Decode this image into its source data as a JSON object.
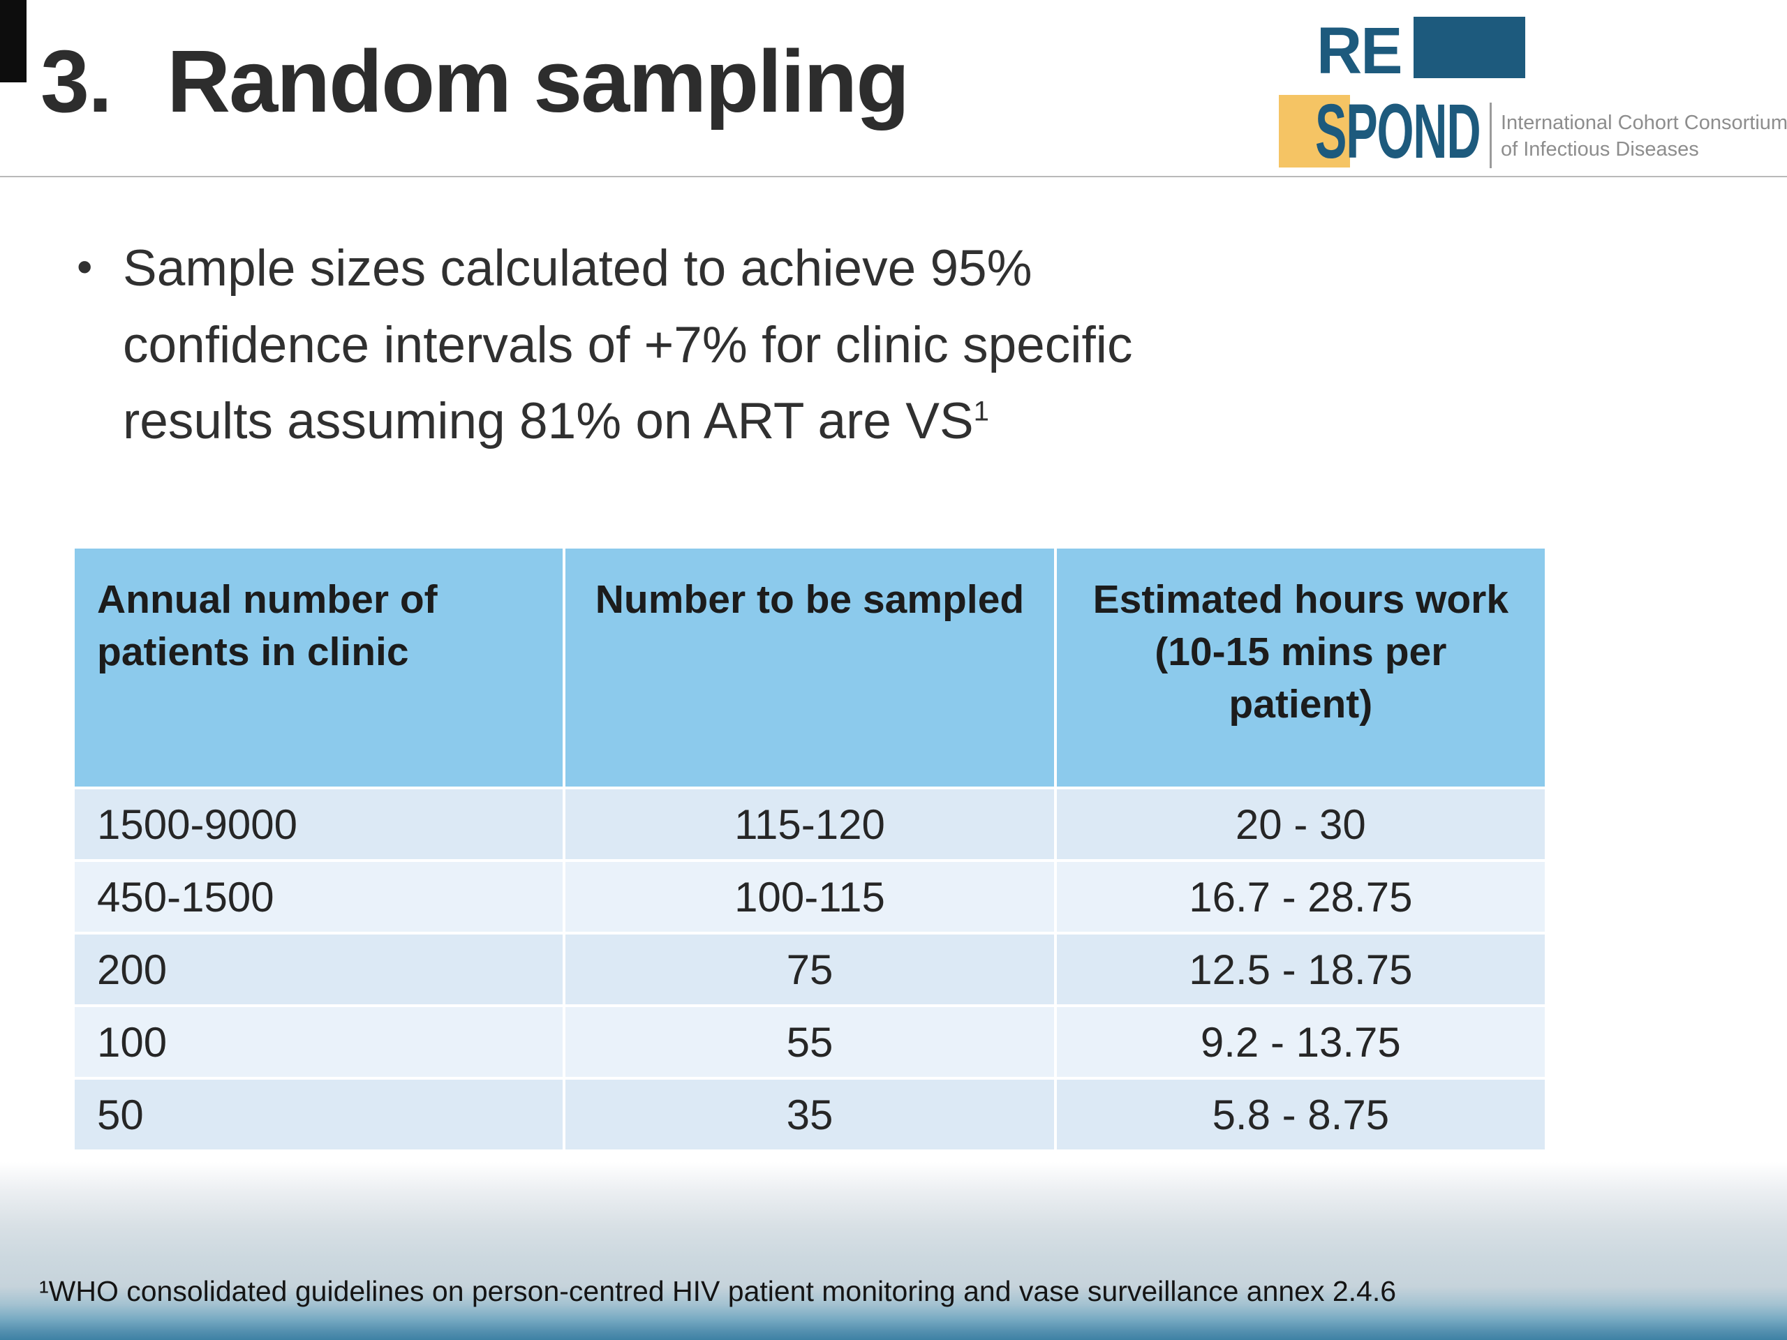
{
  "slide": {
    "title_number": "3.",
    "title_text": "Random sampling",
    "bullet_marker": "•",
    "bullet_lines": [
      "Sample sizes calculated to achieve 95%",
      "confidence intervals of +7% for clinic specific",
      "results assuming 81% on ART are VS"
    ],
    "bullet_sup": "1",
    "footnote": "¹WHO consolidated guidelines on person-centred HIV patient monitoring and vase surveillance annex 2.4.6"
  },
  "logo": {
    "re": "RE",
    "spond": "SPOND",
    "tagline": [
      "International Cohort Consortium",
      "of Infectious Diseases"
    ],
    "colors": {
      "navy": "#1d5a7d",
      "yellow": "#f5c464",
      "tagline_gray": "#8d8d8d"
    }
  },
  "table": {
    "headers": [
      "Annual number of patients in clinic",
      "Number to be sampled",
      "Estimated hours work (10-15 mins per patient)"
    ],
    "rows": [
      [
        "1500-9000",
        "115-120",
        "20 - 30"
      ],
      [
        "450-1500",
        "100-115",
        "16.7 - 28.75"
      ],
      [
        "200",
        "75",
        "12.5 - 18.75"
      ],
      [
        "100",
        "55",
        "9.2 - 13.75"
      ],
      [
        "50",
        "35",
        "5.8 - 8.75"
      ]
    ],
    "colors": {
      "header_bg": "#8ccaec",
      "row_odd": "#dce9f5",
      "row_even": "#eaf2fa"
    }
  }
}
